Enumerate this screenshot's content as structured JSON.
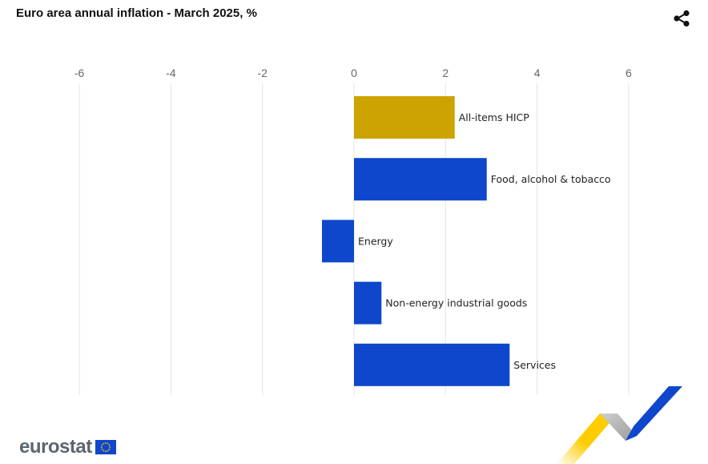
{
  "header": {
    "title": "Euro area annual inflation - March 2025, %",
    "share_icon": "share-icon"
  },
  "chart_data": {
    "type": "bar",
    "orientation": "horizontal",
    "title": "Euro area annual inflation - March 2025, %",
    "categories": [
      "All-items HICP",
      "Food, alcohol & tobacco",
      "Energy",
      "Non-energy industrial goods",
      "Services"
    ],
    "values": [
      2.2,
      2.9,
      -0.7,
      0.6,
      3.4
    ],
    "bar_colors": [
      "#cca300",
      "#0e47cb",
      "#0e47cb",
      "#0e47cb",
      "#0e47cb"
    ],
    "xlim": [
      -6,
      7
    ],
    "x_ticks": [
      -6,
      -4,
      -2,
      0,
      2,
      4,
      6
    ],
    "axis_position": "top",
    "grid": true,
    "legend": "none"
  },
  "footer": {
    "logo_text": "eurostat",
    "logo_flag_icon": "eu-flag-icon",
    "decoration_icon": "eurostat-chevron-decoration"
  },
  "colors": {
    "highlight_bar": "#cca300",
    "bar": "#0e47cb",
    "grid": "#e4e4e4",
    "tick_text": "#666666",
    "label_text": "#222222",
    "logo_grey": "#5b6670",
    "eu_blue": "#0e47cb",
    "eu_yellow": "#ffcc00"
  }
}
